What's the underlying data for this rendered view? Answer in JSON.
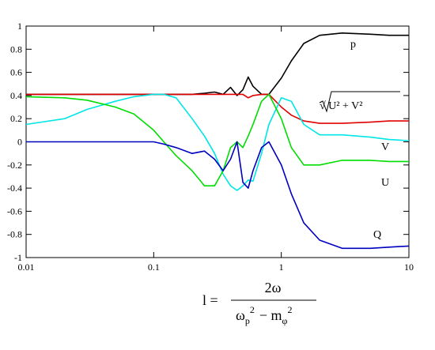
{
  "chart_data": {
    "type": "line",
    "x": [
      0.01,
      0.02,
      0.03,
      0.05,
      0.07,
      0.1,
      0.12,
      0.15,
      0.2,
      0.25,
      0.3,
      0.35,
      0.4,
      0.45,
      0.5,
      0.55,
      0.6,
      0.7,
      0.8,
      1,
      1.2,
      1.5,
      2,
      3,
      5,
      7,
      10
    ],
    "series": [
      {
        "name": "p",
        "color": "#000000",
        "values": [
          0.41,
          0.41,
          0.41,
          0.41,
          0.41,
          0.41,
          0.41,
          0.41,
          0.41,
          0.42,
          0.43,
          0.41,
          0.47,
          0.4,
          0.45,
          0.56,
          0.48,
          0.41,
          0.41,
          0.55,
          0.7,
          0.85,
          0.92,
          0.94,
          0.93,
          0.92,
          0.92
        ]
      },
      {
        "name": "√ U² + V²",
        "color": "#e00000",
        "values": [
          0.41,
          0.41,
          0.41,
          0.41,
          0.41,
          0.41,
          0.41,
          0.41,
          0.41,
          0.41,
          0.41,
          0.41,
          0.41,
          0.41,
          0.41,
          0.38,
          0.4,
          0.41,
          0.41,
          0.3,
          0.23,
          0.18,
          0.16,
          0.16,
          0.17,
          0.18,
          0.18
        ]
      },
      {
        "name": "V",
        "color": "#00e5e5",
        "values": [
          0.15,
          0.2,
          0.28,
          0.35,
          0.39,
          0.41,
          0.41,
          0.38,
          0.2,
          0.05,
          -0.1,
          -0.28,
          -0.38,
          -0.42,
          -0.38,
          -0.33,
          -0.34,
          -0.1,
          0.15,
          0.38,
          0.35,
          0.15,
          0.06,
          0.06,
          0.04,
          0.02,
          0.01
        ]
      },
      {
        "name": "U",
        "color": "#00dd00",
        "values": [
          0.39,
          0.38,
          0.36,
          0.3,
          0.24,
          0.1,
          0.0,
          -0.12,
          -0.25,
          -0.38,
          -0.38,
          -0.25,
          -0.05,
          0.0,
          -0.05,
          0.05,
          0.15,
          0.35,
          0.41,
          0.2,
          -0.05,
          -0.2,
          -0.2,
          -0.16,
          -0.16,
          -0.17,
          -0.17
        ]
      },
      {
        "name": "Q",
        "color": "#0000c0",
        "values": [
          0.0,
          0.0,
          0.0,
          0.0,
          0.0,
          0.0,
          -0.02,
          -0.05,
          -0.1,
          -0.08,
          -0.15,
          -0.25,
          -0.15,
          0.0,
          -0.35,
          -0.4,
          -0.25,
          -0.05,
          0.0,
          -0.2,
          -0.45,
          -0.7,
          -0.85,
          -0.92,
          -0.92,
          -0.91,
          -0.9
        ]
      }
    ],
    "xlim": [
      0.01,
      10
    ],
    "ylim": [
      -1,
      1
    ],
    "xlog": true,
    "xticks": [
      0.01,
      0.1,
      1,
      10
    ],
    "yticks": [
      -1,
      -0.8,
      -0.6,
      -0.4,
      -0.2,
      0,
      0.2,
      0.4,
      0.6,
      0.8,
      1
    ],
    "x_label": {
      "lhs": "l =",
      "numerator": "2ω",
      "denominator": [
        "ω",
        "p",
        "2",
        "− m",
        "φ",
        "2"
      ]
    }
  }
}
